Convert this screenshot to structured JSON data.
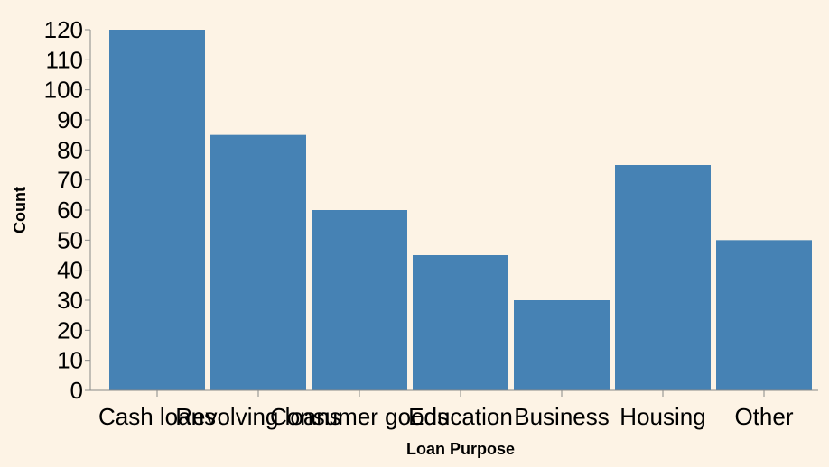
{
  "chart_data": {
    "type": "bar",
    "title": "",
    "xlabel": "Loan Purpose",
    "ylabel": "Count",
    "categories": [
      "Cash loans",
      "Revolving loans",
      "Consumer goods",
      "Education",
      "Business",
      "Housing",
      "Other"
    ],
    "values": [
      120,
      85,
      60,
      45,
      30,
      75,
      50
    ],
    "ylim": [
      0,
      120
    ],
    "yticks": [
      0,
      10,
      20,
      30,
      40,
      50,
      60,
      70,
      80,
      90,
      100,
      110,
      120
    ],
    "grid": false,
    "legend": "none",
    "colors": {
      "bar": "#4682b4",
      "background": "#fdf3e5",
      "axis": "#888888"
    }
  }
}
